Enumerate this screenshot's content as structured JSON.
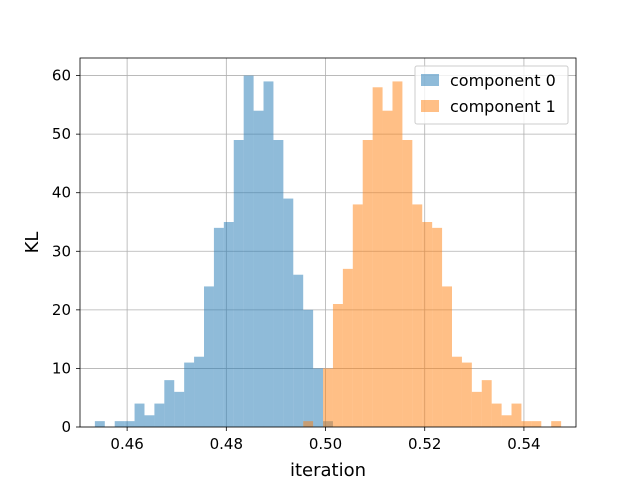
{
  "chart_data": {
    "type": "bar",
    "title": "",
    "xlabel": "iteration",
    "ylabel": "KL",
    "xlim": [
      0.4505,
      0.5505
    ],
    "ylim": [
      0,
      63
    ],
    "x_ticks": [
      0.46,
      0.48,
      0.5,
      0.52,
      0.54
    ],
    "x_tick_labels": [
      "0.46",
      "0.48",
      "0.50",
      "0.52",
      "0.54"
    ],
    "y_ticks": [
      0,
      10,
      20,
      30,
      40,
      50,
      60
    ],
    "y_tick_labels": [
      "0",
      "10",
      "20",
      "30",
      "40",
      "50",
      "60"
    ],
    "grid": true,
    "legend_position": "top-right",
    "series": [
      {
        "name": "component 0",
        "color": "#1f77b4",
        "opacity": 0.5,
        "bin_edges": [
          0.4535,
          0.4555,
          0.4575,
          0.4595,
          0.4615,
          0.4635,
          0.4655,
          0.4675,
          0.4695,
          0.4715,
          0.4735,
          0.4755,
          0.4775,
          0.4795,
          0.4815,
          0.4835,
          0.4855,
          0.4875,
          0.4895,
          0.4915,
          0.4935,
          0.4955,
          0.4975,
          0.4995,
          0.5015
        ],
        "counts": [
          1,
          0,
          1,
          1,
          4,
          2,
          4,
          8,
          6,
          11,
          12,
          24,
          34,
          35,
          49,
          60,
          54,
          59,
          49,
          39,
          26,
          20,
          10,
          1
        ]
      },
      {
        "name": "component 1",
        "color": "#ff7f0e",
        "opacity": 0.5,
        "bin_edges": [
          0.4955,
          0.4975,
          0.4995,
          0.5015,
          0.5035,
          0.5055,
          0.5075,
          0.5095,
          0.5115,
          0.5135,
          0.5155,
          0.5175,
          0.5195,
          0.5215,
          0.5235,
          0.5255,
          0.5275,
          0.5295,
          0.5315,
          0.5335,
          0.5355,
          0.5375,
          0.5395,
          0.5415,
          0.5435,
          0.5455,
          0.5475
        ],
        "counts": [
          1,
          0,
          10,
          21,
          27,
          38,
          49,
          58,
          54,
          59,
          49,
          38,
          35,
          34,
          24,
          12,
          11,
          6,
          8,
          4,
          2,
          4,
          1,
          1,
          0,
          1
        ]
      }
    ]
  }
}
